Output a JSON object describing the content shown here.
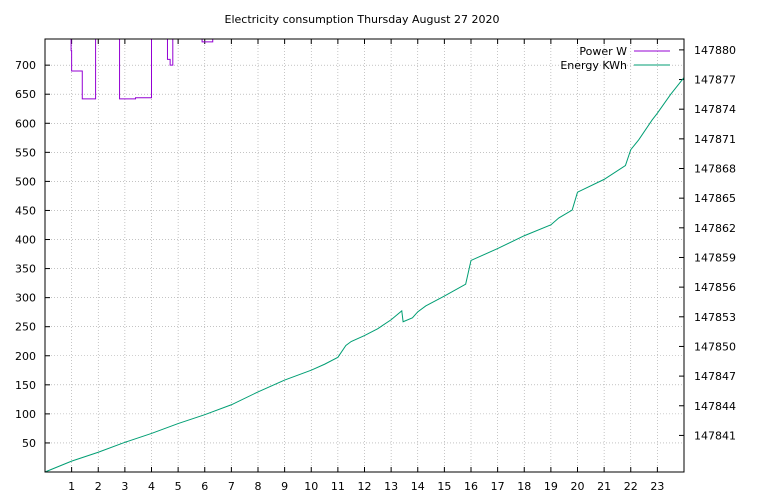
{
  "chart_data": {
    "type": "line",
    "title": "Electricity consumption Thursday August 27 2020",
    "xlim": [
      0,
      24
    ],
    "x_ticks": [
      1,
      2,
      3,
      4,
      5,
      6,
      7,
      8,
      9,
      10,
      11,
      12,
      13,
      14,
      15,
      16,
      17,
      18,
      19,
      20,
      21,
      22,
      23
    ],
    "y_left": {
      "ylim": [
        0,
        745
      ],
      "ticks": [
        50,
        100,
        150,
        200,
        250,
        300,
        350,
        400,
        450,
        500,
        550,
        600,
        650,
        700
      ]
    },
    "y_right": {
      "ylim": [
        147837.3,
        147881.1
      ],
      "ticks": [
        147841,
        147844,
        147847,
        147850,
        147853,
        147856,
        147859,
        147862,
        147865,
        147868,
        147871,
        147874,
        147877,
        147880
      ]
    },
    "grid": true,
    "legend_position": "top-right",
    "series": [
      {
        "name": "Power W",
        "axis": "left",
        "color": "#9400d3",
        "step": true,
        "x": [
          0.95,
          0.98,
          1.0,
          1.4,
          1.9,
          2.8,
          3.4,
          3.4,
          4.0,
          4.6,
          4.7,
          4.8,
          5.9,
          6.3
        ],
        "y": [
          745,
          725,
          690,
          642,
          745,
          642,
          643,
          644,
          745,
          710,
          700,
          745,
          740,
          745
        ]
      },
      {
        "name": "Energy KWh",
        "axis": "right",
        "color": "#009e73",
        "x": [
          0,
          1,
          2,
          3,
          4,
          5,
          6,
          7,
          8,
          9,
          10,
          10.5,
          11,
          11.3,
          11.5,
          12,
          12.5,
          13,
          13.4,
          13.45,
          13.8,
          14,
          14.3,
          15,
          15.8,
          16,
          17,
          18,
          19,
          19.3,
          19.8,
          20,
          21,
          21.8,
          22,
          22.3,
          22.8,
          23,
          23.5,
          24
        ],
        "y": [
          147837.3,
          147838.4,
          147839.3,
          147840.3,
          147841.2,
          147842.2,
          147843.1,
          147844.1,
          147845.4,
          147846.6,
          147847.6,
          147848.2,
          147848.9,
          147850.1,
          147850.5,
          147851.1,
          147851.8,
          147852.7,
          147853.6,
          147852.5,
          147852.9,
          147853.5,
          147854.1,
          147855.1,
          147856.3,
          147858.7,
          147859.9,
          147861.2,
          147862.3,
          147863.0,
          147863.8,
          147865.6,
          147866.9,
          147868.3,
          147869.9,
          147870.9,
          147872.9,
          147873.6,
          147875.5,
          147877.2
        ]
      }
    ]
  }
}
